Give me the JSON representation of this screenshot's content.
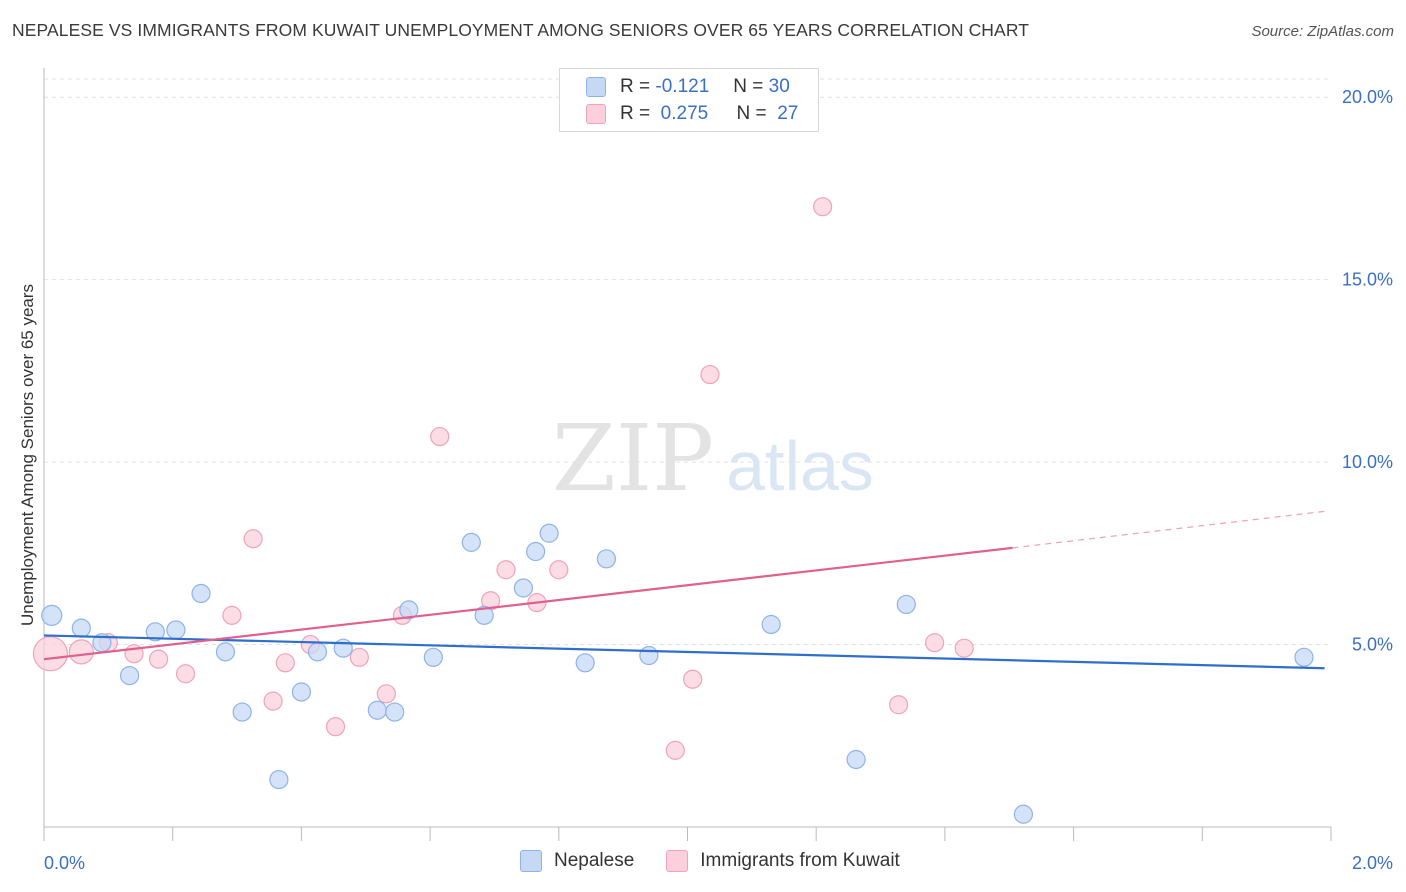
{
  "header": {
    "title": "NEPALESE VS IMMIGRANTS FROM KUWAIT UNEMPLOYMENT AMONG SENIORS OVER 65 YEARS CORRELATION CHART",
    "source": "Source: ZipAtlas.com"
  },
  "watermark": {
    "zip": "ZIP",
    "atlas": "atlas"
  },
  "legend_top": {
    "rows": [
      {
        "r_label": "R =",
        "r_value": "-0.121",
        "n_label": "N =",
        "n_value": "30",
        "color": "#a9c7ef"
      },
      {
        "r_label": "R =",
        "r_value": "0.275",
        "n_label": "N =",
        "n_value": "27",
        "color": "#f5b8cb"
      }
    ]
  },
  "colors": {
    "nepalese_fill": "#c5d9f5",
    "nepalese_stroke": "#8fb3e8",
    "nepalese_line": "#2e6fcc",
    "kuwait_fill": "#fbd0dc",
    "kuwait_stroke": "#f0a3bb",
    "kuwait_line": "#e0608e",
    "axis_text": "#3a6fc4",
    "grid": "#e2e2e2"
  },
  "chart_data": {
    "type": "scatter",
    "title": "NEPALESE VS IMMIGRANTS FROM KUWAIT UNEMPLOYMENT AMONG SENIORS OVER 65 YEARS CORRELATION CHART",
    "xlabel": "",
    "ylabel": "Unemployment Among Seniors over 65 years",
    "xlim": [
      0,
      2.0
    ],
    "ylim": [
      0,
      20.5
    ],
    "x_tick_labels": [
      "0.0%",
      "2.0%"
    ],
    "y_ticks": [
      5,
      10,
      15,
      20
    ],
    "y_tick_labels": [
      "5.0%",
      "10.0%",
      "15.0%",
      "20.0%"
    ],
    "grid": true,
    "legend_position": "top-center",
    "series": [
      {
        "name": "Nepalese",
        "points": [
          [
            0.012,
            5.8,
            10
          ],
          [
            0.058,
            5.45,
            9
          ],
          [
            0.09,
            5.05,
            9
          ],
          [
            0.133,
            4.15,
            9
          ],
          [
            0.173,
            5.35,
            9
          ],
          [
            0.205,
            5.4,
            9
          ],
          [
            0.244,
            6.4,
            9
          ],
          [
            0.282,
            4.8,
            9
          ],
          [
            0.308,
            3.15,
            9
          ],
          [
            0.365,
            1.3,
            9
          ],
          [
            0.4,
            3.7,
            9
          ],
          [
            0.425,
            4.8,
            9
          ],
          [
            0.465,
            4.9,
            9
          ],
          [
            0.518,
            3.2,
            9
          ],
          [
            0.545,
            3.15,
            9
          ],
          [
            0.567,
            5.95,
            9
          ],
          [
            0.605,
            4.65,
            9
          ],
          [
            0.664,
            7.8,
            9
          ],
          [
            0.684,
            5.8,
            9
          ],
          [
            0.745,
            6.55,
            9
          ],
          [
            0.764,
            7.55,
            9
          ],
          [
            0.785,
            8.05,
            9
          ],
          [
            0.841,
            4.5,
            9
          ],
          [
            0.874,
            7.35,
            9
          ],
          [
            0.94,
            4.7,
            9
          ],
          [
            1.13,
            5.55,
            9
          ],
          [
            1.262,
            1.85,
            9
          ],
          [
            1.34,
            6.1,
            9
          ],
          [
            1.522,
            0.35,
            9
          ],
          [
            1.958,
            4.65,
            9
          ]
        ],
        "trend": [
          [
            0.0,
            5.25
          ],
          [
            1.99,
            4.35
          ]
        ]
      },
      {
        "name": "Immigrants from Kuwait",
        "points": [
          [
            0.01,
            4.75,
            17
          ],
          [
            0.058,
            4.8,
            12
          ],
          [
            0.1,
            5.05,
            9
          ],
          [
            0.14,
            4.75,
            9
          ],
          [
            0.178,
            4.6,
            9
          ],
          [
            0.22,
            4.2,
            9
          ],
          [
            0.292,
            5.8,
            9
          ],
          [
            0.325,
            7.9,
            9
          ],
          [
            0.356,
            3.45,
            9
          ],
          [
            0.375,
            4.5,
            9
          ],
          [
            0.414,
            5.0,
            9
          ],
          [
            0.453,
            2.75,
            9
          ],
          [
            0.49,
            4.65,
            9
          ],
          [
            0.532,
            3.65,
            9
          ],
          [
            0.557,
            5.8,
            9
          ],
          [
            0.615,
            10.7,
            9
          ],
          [
            0.694,
            6.2,
            9
          ],
          [
            0.718,
            7.05,
            9
          ],
          [
            0.766,
            6.15,
            9
          ],
          [
            0.8,
            7.05,
            9
          ],
          [
            0.981,
            2.1,
            9
          ],
          [
            1.008,
            4.05,
            9
          ],
          [
            1.035,
            12.4,
            9
          ],
          [
            1.21,
            17.0,
            9
          ],
          [
            1.328,
            3.35,
            9
          ],
          [
            1.384,
            5.05,
            9
          ],
          [
            1.43,
            4.9,
            9
          ]
        ],
        "trend": [
          [
            0.0,
            4.6
          ],
          [
            1.505,
            7.65
          ]
        ],
        "trend_dashed": [
          [
            1.505,
            7.65
          ],
          [
            1.99,
            8.65
          ]
        ]
      }
    ]
  },
  "bottom_legend": {
    "items": [
      {
        "label": "Nepalese"
      },
      {
        "label": "Immigrants from Kuwait"
      }
    ]
  }
}
